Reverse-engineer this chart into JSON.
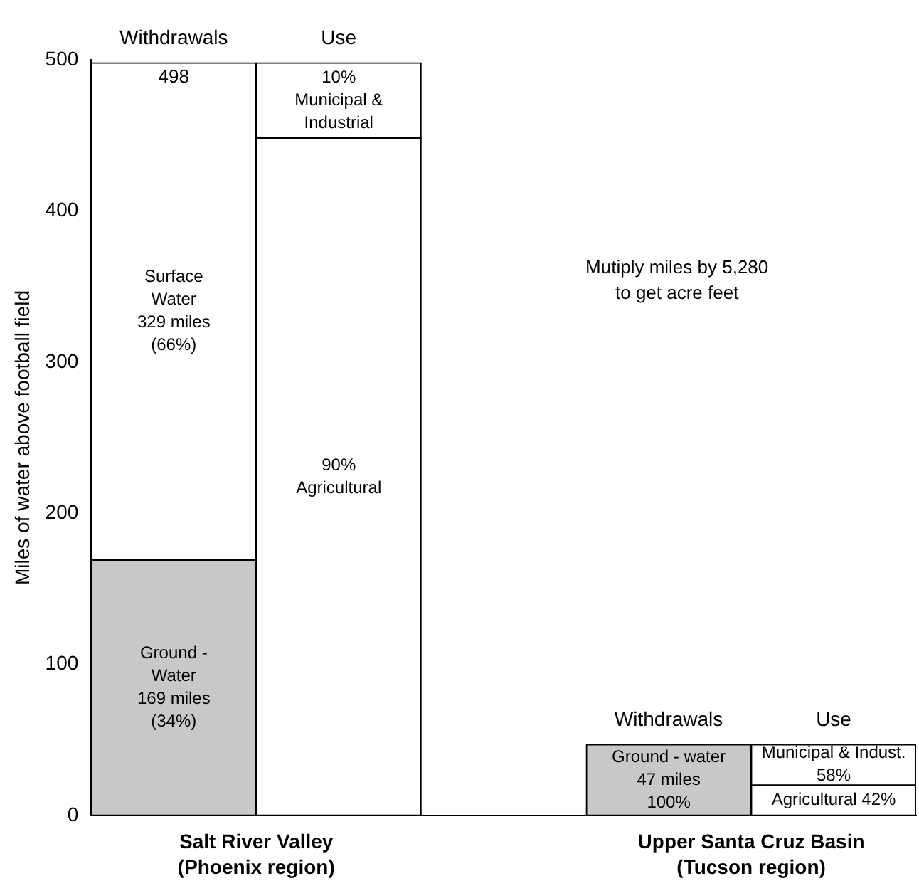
{
  "chart_data": {
    "type": "bar",
    "stacked": true,
    "ylabel": "Miles of water above football field",
    "categories": [
      "Withdrawals",
      "Use",
      null,
      "Withdrawals",
      "Use"
    ],
    "series": [
      {
        "color": "#c8c8c8",
        "values": [
          169,
          null,
          null,
          47,
          null
        ],
        "value_labels": [
          "Ground -\nWater\n169 miles\n(34%)",
          null,
          null,
          "Ground - water\n47 miles\n100%",
          null
        ]
      },
      {
        "color": "#ffffff",
        "values": [
          329,
          null,
          null,
          null,
          null
        ],
        "value_labels": [
          "Surface\nWater\n329 miles\n(66%)",
          null,
          null,
          null,
          null
        ]
      },
      {
        "color": "#ffffff",
        "values": [
          null,
          448,
          null,
          null,
          20
        ]
      },
      {
        "color": "#ffffff",
        "values": [
          null,
          50,
          null,
          null,
          27
        ]
      }
    ],
    "totals": [
      "498",
      null,
      null,
      null,
      null
    ],
    "ylim": [
      0,
      500
    ],
    "yticks": [
      0,
      100,
      200,
      300,
      400,
      500
    ],
    "grid": false,
    "legend": false,
    "annotations": [
      "Mutiply miles by 5,280\nto get acre feet",
      "Salt River Valley\n(Phoenix region)",
      "Upper Santa Cruz Basin\n(Tucson region)",
      "10%\nMunicipal &\nIndustrial",
      "90%\nAgricultural",
      "Municipal & Indust.\n58%",
      "Agricultural 42%"
    ]
  }
}
